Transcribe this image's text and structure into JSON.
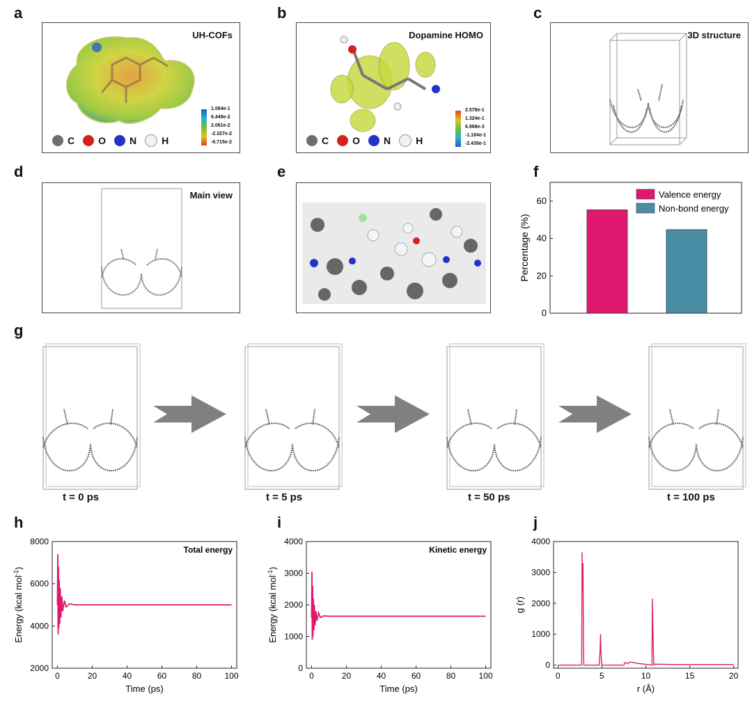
{
  "panels": {
    "a": {
      "label": "a",
      "title": "UH-COFs",
      "colorbar": [
        "1.084e-1",
        "6.449e-2",
        "2.061e-2",
        "-2.327e-2",
        "-6.715e-2"
      ]
    },
    "b": {
      "label": "b",
      "title": "Dopamine HOMO",
      "colorbar": [
        "2.578e-1",
        "1.324e-1",
        "6.968e-3",
        "-1.184e-1",
        "-2.438e-1"
      ]
    },
    "c": {
      "label": "c",
      "title": "3D structure"
    },
    "d": {
      "label": "d",
      "title": "Main view"
    },
    "e": {
      "label": "e"
    },
    "f": {
      "label": "f"
    },
    "g": {
      "label": "g",
      "time_labels": [
        "t = 0 ps",
        "t = 5 ps",
        "t = 50 ps",
        "t = 100 ps"
      ]
    },
    "h": {
      "label": "h"
    },
    "i": {
      "label": "i"
    },
    "j": {
      "label": "j"
    }
  },
  "atom_legend": [
    {
      "symbol": "C",
      "color": "#6e6e6e"
    },
    {
      "symbol": "O",
      "color": "#d62020"
    },
    {
      "symbol": "N",
      "color": "#2233cc"
    },
    {
      "symbol": "H",
      "color": "#f2f2f2"
    }
  ],
  "chart_data": [
    {
      "id": "f",
      "type": "bar",
      "categories": [
        "Valence energy",
        "Non-bond energy"
      ],
      "values": [
        55.3,
        44.7
      ],
      "colors": [
        "#e0186f",
        "#4a8ea6"
      ],
      "ylabel": "Percentage (%)",
      "xlabel": "",
      "ylim": [
        0,
        70
      ],
      "yticks": [
        0,
        20,
        40,
        60
      ],
      "legend": "top-right"
    },
    {
      "id": "h",
      "type": "line",
      "title": "Total energy",
      "xlabel": "Time (ps)",
      "ylabel": "Energy (kcal mol",
      "ylabel_sup": "-1",
      "ylabel_end": ")",
      "xlim": [
        -3,
        103
      ],
      "ylim": [
        2000,
        8000
      ],
      "xticks": [
        0,
        20,
        40,
        60,
        80,
        100
      ],
      "yticks": [
        2000,
        4000,
        6000,
        8000
      ],
      "series": [
        {
          "name": "Total energy",
          "color": "#e0186f",
          "x": [
            0,
            0.2,
            0.4,
            0.6,
            0.8,
            1.0,
            1.3,
            1.6,
            2.0,
            2.5,
            3.0,
            4.0,
            5.0,
            7,
            10,
            20,
            40,
            60,
            80,
            100
          ],
          "y": [
            5000,
            7400,
            3600,
            6800,
            3900,
            6200,
            4100,
            5800,
            4400,
            5400,
            4700,
            5200,
            4900,
            5050,
            5000,
            5000,
            5000,
            5000,
            5000,
            5000
          ]
        }
      ]
    },
    {
      "id": "i",
      "type": "line",
      "title": "Kinetic energy",
      "xlabel": "Time (ps)",
      "ylabel": "Energy (kcal mol",
      "ylabel_sup": "-1",
      "ylabel_end": ")",
      "xlim": [
        -3,
        103
      ],
      "ylim": [
        0,
        4000
      ],
      "xticks": [
        0,
        20,
        40,
        60,
        80,
        100
      ],
      "yticks": [
        0,
        1000,
        2000,
        3000,
        4000
      ],
      "series": [
        {
          "name": "Kinetic energy",
          "color": "#e0186f",
          "x": [
            0,
            0.2,
            0.4,
            0.6,
            0.8,
            1.0,
            1.3,
            1.6,
            2.0,
            2.5,
            3.0,
            4.0,
            5.0,
            7,
            10,
            20,
            40,
            60,
            80,
            100
          ],
          "y": [
            1600,
            3050,
            900,
            2600,
            1000,
            2200,
            1200,
            2000,
            1350,
            1800,
            1500,
            1750,
            1600,
            1650,
            1640,
            1640,
            1640,
            1640,
            1640,
            1640
          ]
        }
      ]
    },
    {
      "id": "j",
      "type": "line",
      "title": "",
      "xlabel": "r (Å)",
      "ylabel": "g (r)",
      "xlim": [
        -0.5,
        20.5
      ],
      "ylim": [
        -100,
        4000
      ],
      "xticks": [
        0,
        5,
        10,
        15,
        20
      ],
      "yticks": [
        0,
        1000,
        2000,
        3000,
        4000
      ],
      "series": [
        {
          "name": "g(r)",
          "color": "#e0186f",
          "x": [
            0,
            2.5,
            2.7,
            2.75,
            2.8,
            2.85,
            2.9,
            2.95,
            3.0,
            3.2,
            4.7,
            4.8,
            4.85,
            4.9,
            5.0,
            5.2,
            7.5,
            7.6,
            8.0,
            8.2,
            9.0,
            10.7,
            10.75,
            10.8,
            10.9,
            11.0,
            13,
            20
          ],
          "y": [
            0,
            0,
            0,
            3650,
            2400,
            3300,
            800,
            0,
            0,
            0,
            0,
            500,
            1000,
            400,
            0,
            0,
            0,
            80,
            50,
            100,
            60,
            0,
            2150,
            1200,
            0,
            30,
            20,
            20
          ]
        }
      ]
    }
  ]
}
